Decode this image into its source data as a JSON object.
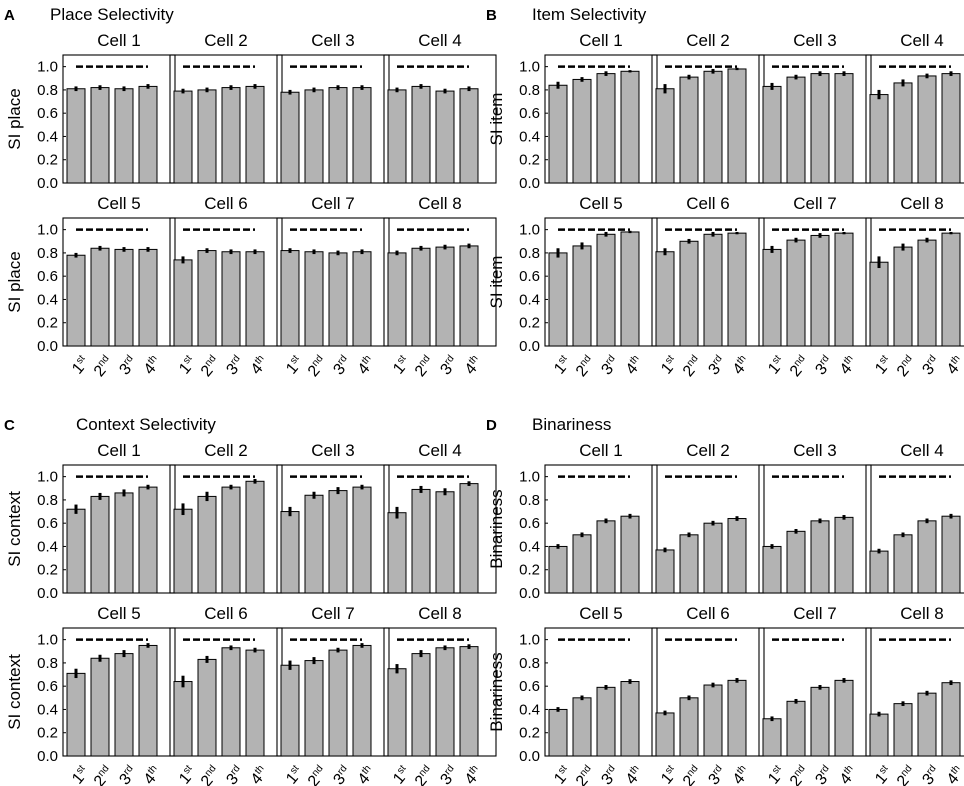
{
  "figure": {
    "x_categories": [
      {
        "base": "1",
        "sup": "st"
      },
      {
        "base": "2",
        "sup": "nd"
      },
      {
        "base": "3",
        "sup": "rd"
      },
      {
        "base": "4",
        "sup": "th"
      }
    ],
    "y_ticks": [
      "0.0",
      "0.2",
      "0.4",
      "0.6",
      "0.8",
      "1.0"
    ]
  },
  "chart_data": [
    {
      "type": "bar",
      "panel": "A",
      "title": "Place Selectivity",
      "ylabel": "SI place",
      "ylim": [
        0,
        1.1
      ],
      "reference_line": 1.0,
      "reference_range": [
        1,
        4
      ],
      "subplots": [
        {
          "title": "Cell 1",
          "values": [
            0.81,
            0.82,
            0.81,
            0.83
          ],
          "errors": [
            0.02,
            0.02,
            0.02,
            0.02
          ]
        },
        {
          "title": "Cell 2",
          "values": [
            0.79,
            0.8,
            0.82,
            0.83
          ],
          "errors": [
            0.02,
            0.02,
            0.02,
            0.02
          ]
        },
        {
          "title": "Cell 3",
          "values": [
            0.78,
            0.8,
            0.82,
            0.82
          ],
          "errors": [
            0.02,
            0.02,
            0.02,
            0.02
          ]
        },
        {
          "title": "Cell 4",
          "values": [
            0.8,
            0.83,
            0.79,
            0.81
          ],
          "errors": [
            0.02,
            0.02,
            0.02,
            0.02
          ]
        },
        {
          "title": "Cell 5",
          "values": [
            0.78,
            0.84,
            0.83,
            0.83
          ],
          "errors": [
            0.02,
            0.02,
            0.02,
            0.02
          ]
        },
        {
          "title": "Cell 6",
          "values": [
            0.74,
            0.82,
            0.81,
            0.81
          ],
          "errors": [
            0.03,
            0.02,
            0.02,
            0.02
          ]
        },
        {
          "title": "Cell 7",
          "values": [
            0.82,
            0.81,
            0.8,
            0.81
          ],
          "errors": [
            0.02,
            0.02,
            0.02,
            0.02
          ]
        },
        {
          "title": "Cell 8",
          "values": [
            0.8,
            0.84,
            0.85,
            0.86
          ],
          "errors": [
            0.02,
            0.02,
            0.02,
            0.02
          ]
        }
      ]
    },
    {
      "type": "bar",
      "panel": "B",
      "title": "Item Selectivity",
      "ylabel": "SI item",
      "ylim": [
        0,
        1.1
      ],
      "reference_line": 1.0,
      "reference_range": [
        1,
        4
      ],
      "subplots": [
        {
          "title": "Cell 1",
          "values": [
            0.84,
            0.89,
            0.94,
            0.96
          ],
          "errors": [
            0.03,
            0.02,
            0.02,
            0.01
          ]
        },
        {
          "title": "Cell 2",
          "values": [
            0.81,
            0.91,
            0.96,
            0.98
          ],
          "errors": [
            0.04,
            0.02,
            0.02,
            0.01
          ]
        },
        {
          "title": "Cell 3",
          "values": [
            0.83,
            0.91,
            0.94,
            0.94
          ],
          "errors": [
            0.03,
            0.02,
            0.02,
            0.02
          ]
        },
        {
          "title": "Cell 4",
          "values": [
            0.76,
            0.86,
            0.92,
            0.94
          ],
          "errors": [
            0.04,
            0.03,
            0.02,
            0.02
          ]
        },
        {
          "title": "Cell 5",
          "values": [
            0.8,
            0.86,
            0.96,
            0.98
          ],
          "errors": [
            0.04,
            0.03,
            0.02,
            0.01
          ]
        },
        {
          "title": "Cell 6",
          "values": [
            0.81,
            0.9,
            0.96,
            0.97
          ],
          "errors": [
            0.03,
            0.02,
            0.02,
            0.01
          ]
        },
        {
          "title": "Cell 7",
          "values": [
            0.83,
            0.91,
            0.95,
            0.97
          ],
          "errors": [
            0.03,
            0.02,
            0.02,
            0.01
          ]
        },
        {
          "title": "Cell 8",
          "values": [
            0.72,
            0.85,
            0.91,
            0.97
          ],
          "errors": [
            0.05,
            0.03,
            0.02,
            0.01
          ]
        }
      ]
    },
    {
      "type": "bar",
      "panel": "C",
      "title": "Context Selectivity",
      "ylabel": "SI context",
      "ylim": [
        0,
        1.1
      ],
      "reference_line": 1.0,
      "reference_range": [
        1,
        4
      ],
      "subplots": [
        {
          "title": "Cell 1",
          "values": [
            0.72,
            0.83,
            0.86,
            0.91
          ],
          "errors": [
            0.04,
            0.03,
            0.03,
            0.02
          ]
        },
        {
          "title": "Cell 2",
          "values": [
            0.72,
            0.83,
            0.91,
            0.96
          ],
          "errors": [
            0.05,
            0.04,
            0.02,
            0.02
          ]
        },
        {
          "title": "Cell 3",
          "values": [
            0.7,
            0.84,
            0.88,
            0.91
          ],
          "errors": [
            0.04,
            0.03,
            0.03,
            0.02
          ]
        },
        {
          "title": "Cell 4",
          "values": [
            0.69,
            0.89,
            0.87,
            0.94
          ],
          "errors": [
            0.05,
            0.03,
            0.03,
            0.02
          ]
        },
        {
          "title": "Cell 5",
          "values": [
            0.71,
            0.84,
            0.88,
            0.95
          ],
          "errors": [
            0.04,
            0.03,
            0.03,
            0.02
          ]
        },
        {
          "title": "Cell 6",
          "values": [
            0.64,
            0.83,
            0.93,
            0.91
          ],
          "errors": [
            0.05,
            0.03,
            0.02,
            0.02
          ]
        },
        {
          "title": "Cell 7",
          "values": [
            0.78,
            0.82,
            0.91,
            0.95
          ],
          "errors": [
            0.04,
            0.03,
            0.02,
            0.02
          ]
        },
        {
          "title": "Cell 8",
          "values": [
            0.75,
            0.88,
            0.93,
            0.94
          ],
          "errors": [
            0.04,
            0.03,
            0.02,
            0.02
          ]
        }
      ]
    },
    {
      "type": "bar",
      "panel": "D",
      "title": "Binariness",
      "ylabel": "Binariness",
      "ylim": [
        0,
        1.1
      ],
      "reference_line": 1.0,
      "reference_range": [
        1,
        4
      ],
      "subplots": [
        {
          "title": "Cell 1",
          "values": [
            0.4,
            0.5,
            0.62,
            0.66
          ],
          "errors": [
            0.02,
            0.02,
            0.02,
            0.02
          ]
        },
        {
          "title": "Cell 2",
          "values": [
            0.37,
            0.5,
            0.6,
            0.64
          ],
          "errors": [
            0.02,
            0.02,
            0.02,
            0.02
          ]
        },
        {
          "title": "Cell 3",
          "values": [
            0.4,
            0.53,
            0.62,
            0.65
          ],
          "errors": [
            0.02,
            0.02,
            0.02,
            0.02
          ]
        },
        {
          "title": "Cell 4",
          "values": [
            0.36,
            0.5,
            0.62,
            0.66
          ],
          "errors": [
            0.02,
            0.02,
            0.02,
            0.02
          ]
        },
        {
          "title": "Cell 5",
          "values": [
            0.4,
            0.5,
            0.59,
            0.64
          ],
          "errors": [
            0.02,
            0.02,
            0.02,
            0.02
          ]
        },
        {
          "title": "Cell 6",
          "values": [
            0.37,
            0.5,
            0.61,
            0.65
          ],
          "errors": [
            0.02,
            0.02,
            0.02,
            0.02
          ]
        },
        {
          "title": "Cell 7",
          "values": [
            0.32,
            0.47,
            0.59,
            0.65
          ],
          "errors": [
            0.02,
            0.02,
            0.02,
            0.02
          ]
        },
        {
          "title": "Cell 8",
          "values": [
            0.36,
            0.45,
            0.54,
            0.63
          ],
          "errors": [
            0.02,
            0.02,
            0.02,
            0.02
          ]
        }
      ]
    }
  ]
}
